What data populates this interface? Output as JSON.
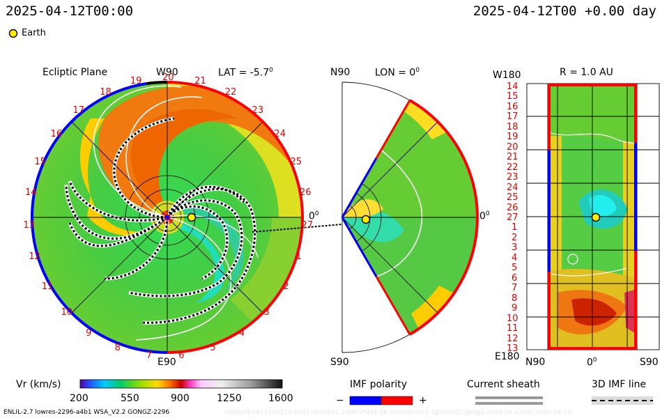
{
  "header": {
    "left_time": "2025-04-12T00:00",
    "right_time": "2025-04-12T00 +0.00 day",
    "earth_legend": "Earth"
  },
  "ecliptic": {
    "title": "Ecliptic Plane",
    "top_label": "W90",
    "bottom_label": "E90",
    "lat_label": "LAT = -5.7",
    "lat_sup": "0",
    "right_zero": "0",
    "right_zero_sup": "0",
    "carrington_ticks": [
      "20",
      "21",
      "22",
      "23",
      "24",
      "25",
      "26",
      "27",
      "1",
      "2",
      "3",
      "4",
      "5",
      "6",
      "7",
      "8",
      "9",
      "10",
      "11",
      "12",
      "13",
      "14",
      "15",
      "16",
      "17",
      "18",
      "19"
    ]
  },
  "meridional": {
    "top_label": "N90",
    "bottom_label": "S90",
    "lon_label": "LON = 0",
    "lon_sup": "0",
    "right_zero": "0",
    "right_zero_sup": "0"
  },
  "sphere": {
    "title": "R = 1.0 AU",
    "top_left": "W180",
    "bottom_left": "E180",
    "x_left": "N90",
    "x_mid": "0",
    "x_mid_sup": "0",
    "x_right": "S90",
    "rows": [
      "14",
      "15",
      "16",
      "17",
      "18",
      "19",
      "20",
      "21",
      "22",
      "23",
      "24",
      "25",
      "26",
      "27",
      "1",
      "2",
      "3",
      "4",
      "5",
      "6",
      "7",
      "8",
      "9",
      "10",
      "11",
      "12",
      "13"
    ]
  },
  "colorbar": {
    "label": "Vr (km/s)",
    "ticks": [
      "200",
      "550",
      "900",
      "1250",
      "1600"
    ],
    "range": [
      200,
      1600
    ]
  },
  "legends": {
    "imf_title": "IMF polarity",
    "imf_minus": "−",
    "imf_plus": "+",
    "sheath_title": "Current sheath",
    "imf3d_title": "3D IMF line"
  },
  "footer": {
    "left": "ENLIL-2.7 lowres-2296-a4b1 WSA_V2.2 GONGZ-2296",
    "right": "UNSUDE0413104214/64b1:30x90x1.2296-2f4b1.16-mocfumnlcd-1g53d5d2.gongz-2025-04-12t00   2025-04-12"
  },
  "colors": {
    "positive_polarity": "#ff0000",
    "negative_polarity": "#0000ff",
    "earth": "#ffee00"
  }
}
